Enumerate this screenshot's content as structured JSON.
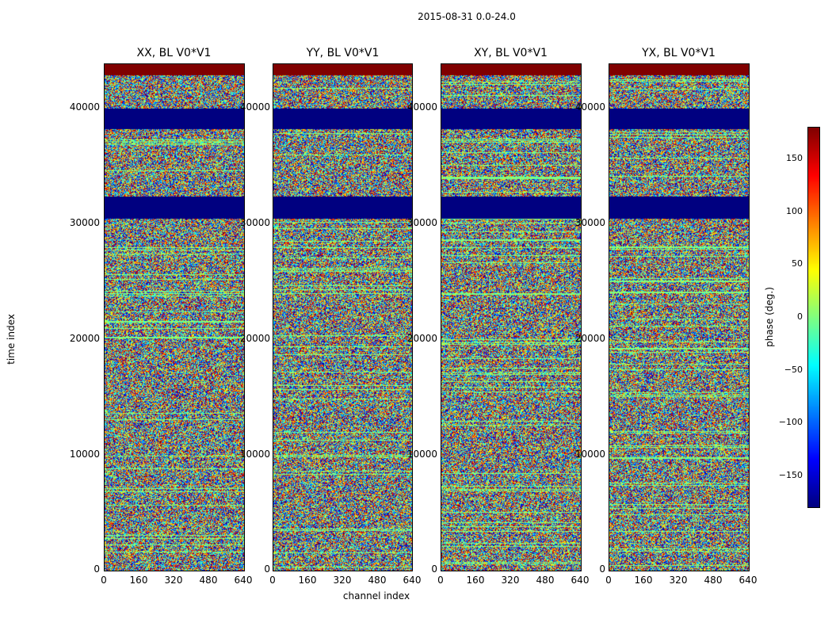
{
  "chart_data": {
    "type": "heatmap",
    "suptitle": "2015-08-31 0.0-24.0",
    "xlabel": "channel index",
    "ylabel": "time index",
    "x_range": [
      0,
      640
    ],
    "y_range": [
      0,
      43800
    ],
    "xticks": [
      "0",
      "160",
      "320",
      "480",
      "640"
    ],
    "yticks": [
      "0",
      "10000",
      "20000",
      "30000",
      "40000"
    ],
    "panels": [
      {
        "title": "XX, BL V0*V1",
        "id": "xx"
      },
      {
        "title": "YY, BL V0*V1",
        "id": "yy"
      },
      {
        "title": "XY, BL V0*V1",
        "id": "xy"
      },
      {
        "title": "YX, BL V0*V1",
        "id": "yx"
      }
    ],
    "masked_time_ranges": [
      [
        38200,
        40000
      ],
      [
        30500,
        32400
      ]
    ],
    "colorbar": {
      "label": "phase (deg.)",
      "range": [
        -180,
        180
      ],
      "ticks": [
        "150",
        "100",
        "50",
        "0",
        "−50",
        "−100",
        "−150"
      ],
      "colormap": "jet"
    }
  }
}
